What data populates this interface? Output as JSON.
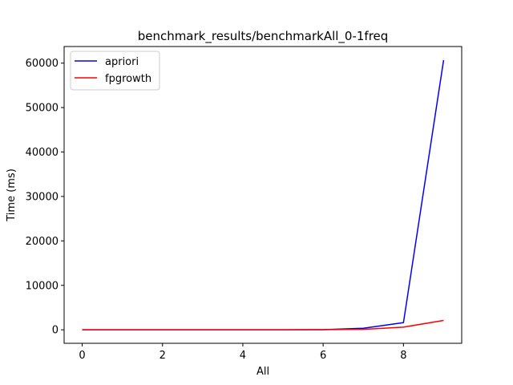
{
  "chart_data": {
    "type": "line",
    "title": "benchmark_results/benchmarkAll_0-1freq",
    "xlabel": "All",
    "ylabel": "Time (ms)",
    "x": [
      0,
      1,
      2,
      3,
      4,
      5,
      6,
      7,
      8,
      9
    ],
    "series": [
      {
        "name": "apriori",
        "color": "#0000ff",
        "values": [
          10,
          10,
          10,
          10,
          10,
          10,
          30,
          350,
          1600,
          60700
        ]
      },
      {
        "name": "fpgrowth",
        "color": "#ff0000",
        "values": [
          10,
          10,
          10,
          10,
          10,
          10,
          20,
          100,
          600,
          2100
        ]
      }
    ],
    "xlim": [
      -0.45,
      9.45
    ],
    "ylim": [
      -3040,
      63740
    ],
    "xticks": [
      0,
      2,
      4,
      6,
      8
    ],
    "yticks": [
      0,
      10000,
      20000,
      30000,
      40000,
      50000,
      60000
    ],
    "legend_position": "upper-left",
    "grid": false
  }
}
